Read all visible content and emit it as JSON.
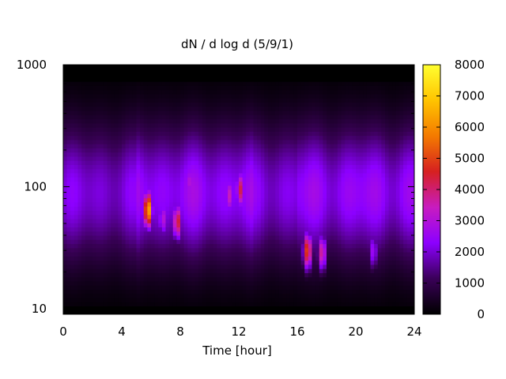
{
  "chart_data": {
    "type": "heatmap",
    "title": "dN / d log d (5/9/1)",
    "xlabel": "Time [hour]",
    "ylabel": "",
    "xlim": [
      0,
      24
    ],
    "ylim": [
      9,
      1000
    ],
    "yscale": "log",
    "x_ticks": [
      0,
      4,
      8,
      12,
      16,
      20,
      24
    ],
    "x_tick_labels": [
      "0",
      "4",
      "8",
      "12",
      "16",
      "20",
      "24"
    ],
    "y_ticks": [
      10,
      100,
      1000
    ],
    "y_tick_labels": [
      "10",
      "100",
      "1000"
    ],
    "colorbar": {
      "min": 0,
      "max": 8000,
      "ticks": [
        0,
        1000,
        2000,
        3000,
        4000,
        5000,
        6000,
        7000,
        8000
      ],
      "tick_labels": [
        "0",
        "1000",
        "2000",
        "3000",
        "4000",
        "5000",
        "6000",
        "7000",
        "8000"
      ],
      "colormap": [
        "#000000",
        "#3a0058",
        "#8c00ff",
        "#c81cc0",
        "#d62020",
        "#f47a00",
        "#ffc400",
        "#ffff30"
      ]
    },
    "hotspots": [
      {
        "time": 5.8,
        "diameter": 65,
        "value": 6600
      },
      {
        "time": 7.8,
        "diameter": 52,
        "value": 4600
      },
      {
        "time": 6.8,
        "diameter": 55,
        "value": 3200
      },
      {
        "time": 8.6,
        "diameter": 110,
        "value": 3000
      },
      {
        "time": 12.1,
        "diameter": 95,
        "value": 4300
      },
      {
        "time": 11.4,
        "diameter": 85,
        "value": 3500
      },
      {
        "time": 16.7,
        "diameter": 30,
        "value": 5100
      },
      {
        "time": 17.7,
        "diameter": 29,
        "value": 3900
      },
      {
        "time": 21.2,
        "diameter": 30,
        "value": 2700
      }
    ]
  }
}
